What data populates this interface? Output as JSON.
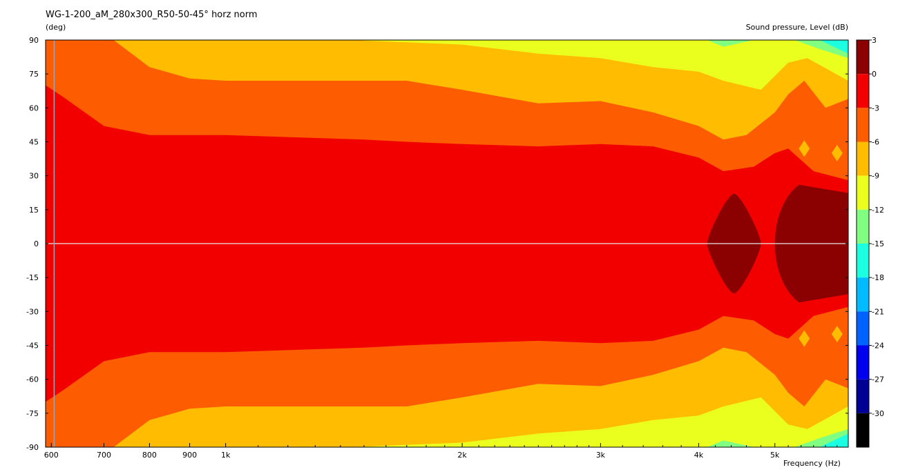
{
  "chart_data": {
    "type": "heatmap",
    "title": "WG-1-200_aM_280x300_R50-50-45° horz norm",
    "ylabel_unit": "(deg)",
    "colorbar_label": "Sound pressure, Level  (dB)",
    "xlabel": "Frequency  (Hz)",
    "x_scale": "log",
    "xlim": [
      590,
      6200
    ],
    "ylim": [
      -90,
      90
    ],
    "x_ticks": [
      {
        "value": 600,
        "label": "600"
      },
      {
        "value": 700,
        "label": "700"
      },
      {
        "value": 800,
        "label": "800"
      },
      {
        "value": 900,
        "label": "900"
      },
      {
        "value": 1000,
        "label": "1k"
      },
      {
        "value": 2000,
        "label": "2k"
      },
      {
        "value": 3000,
        "label": "3k"
      },
      {
        "value": 4000,
        "label": "4k"
      },
      {
        "value": 5000,
        "label": "5k"
      }
    ],
    "x_minor_ticks": [
      1100,
      1200,
      1300,
      1400,
      1500,
      1600,
      1700,
      1800,
      1900,
      2100,
      2200,
      2300,
      2400,
      2500,
      2600,
      2700,
      2800,
      2900,
      3200,
      3400,
      3600,
      3800,
      4200,
      4400,
      4600,
      4800,
      5200,
      5400,
      5600,
      5800,
      6000
    ],
    "y_ticks": [
      90,
      75,
      60,
      45,
      30,
      15,
      0,
      -15,
      -30,
      -45,
      -60,
      -75,
      -90
    ],
    "colorbar": {
      "ticks": [
        3,
        0,
        -3,
        -6,
        -9,
        -12,
        -15,
        -18,
        -21,
        -24,
        -27,
        -30
      ],
      "bands": [
        {
          "from": 0,
          "to": 3,
          "color": "#8b0000"
        },
        {
          "from": -3,
          "to": 0,
          "color": "#f20000"
        },
        {
          "from": -6,
          "to": -3,
          "color": "#fd5d00"
        },
        {
          "from": -9,
          "to": -6,
          "color": "#ffbc00"
        },
        {
          "from": -12,
          "to": -9,
          "color": "#eaff1e"
        },
        {
          "from": -15,
          "to": -12,
          "color": "#80ff80"
        },
        {
          "from": -18,
          "to": -15,
          "color": "#1cffe0"
        },
        {
          "from": -21,
          "to": -18,
          "color": "#00bbff"
        },
        {
          "from": -24,
          "to": -21,
          "color": "#0062ff"
        },
        {
          "from": -27,
          "to": -24,
          "color": "#0000ee"
        },
        {
          "from": -30,
          "to": -27,
          "color": "#000094"
        },
        {
          "from": -33,
          "to": -30,
          "color": "#000000"
        }
      ]
    },
    "contours": [
      {
        "level": "-3 dB",
        "color": "#fd5d00",
        "points": [
          [
            590,
            70
          ],
          [
            620,
            65
          ],
          [
            700,
            52
          ],
          [
            800,
            48
          ],
          [
            1000,
            48
          ],
          [
            1500,
            46
          ],
          [
            1700,
            45
          ],
          [
            2000,
            44
          ],
          [
            2500,
            43
          ],
          [
            3000,
            44
          ],
          [
            3500,
            43
          ],
          [
            4000,
            38
          ],
          [
            4300,
            32
          ],
          [
            4700,
            34
          ],
          [
            5000,
            40
          ],
          [
            5200,
            42
          ],
          [
            5600,
            32
          ],
          [
            6200,
            28
          ]
        ]
      },
      {
        "level": "-6 dB",
        "color": "#ffbc00",
        "points": [
          [
            720,
            90
          ],
          [
            800,
            78
          ],
          [
            900,
            73
          ],
          [
            1000,
            72
          ],
          [
            1500,
            72
          ],
          [
            1700,
            72
          ],
          [
            2000,
            68
          ],
          [
            2500,
            62
          ],
          [
            3000,
            63
          ],
          [
            3500,
            58
          ],
          [
            4000,
            52
          ],
          [
            4300,
            46
          ],
          [
            4600,
            48
          ],
          [
            5000,
            58
          ],
          [
            5200,
            66
          ],
          [
            5450,
            72
          ],
          [
            5800,
            60
          ],
          [
            6200,
            64
          ]
        ]
      },
      {
        "level": "-9 dB",
        "color": "#eaff1e",
        "points": [
          [
            1450,
            90
          ],
          [
            2000,
            88
          ],
          [
            2500,
            84
          ],
          [
            3000,
            82
          ],
          [
            3500,
            78
          ],
          [
            4000,
            76
          ],
          [
            4300,
            72
          ],
          [
            4800,
            68
          ],
          [
            5200,
            80
          ],
          [
            5500,
            82
          ],
          [
            6200,
            72
          ]
        ]
      },
      {
        "level": "-12 dB",
        "color": "#80ff80",
        "points": [
          [
            4100,
            90
          ],
          [
            4300,
            87
          ],
          [
            4700,
            90
          ],
          [
            5300,
            90
          ],
          [
            5700,
            86
          ],
          [
            6200,
            82
          ]
        ]
      },
      {
        "level": "-15 dB",
        "color": "#1cffe0",
        "points": [
          [
            5700,
            90
          ],
          [
            6200,
            84
          ]
        ]
      }
    ],
    "peaks": [
      {
        "level": "> 0 dB",
        "color": "#8b0000",
        "x_range": [
          4100,
          4800
        ],
        "y_max": 22
      },
      {
        "level": "> 0 dB",
        "color": "#8b0000",
        "x_range": [
          5000,
          6200
        ],
        "y_max": 26
      }
    ],
    "islands": [
      {
        "level": "-6 dB",
        "color": "#ffbc00",
        "x": 5450,
        "y": 42
      },
      {
        "level": "-6 dB",
        "color": "#ffbc00",
        "x": 6000,
        "y": 40
      }
    ],
    "reference_x": 605,
    "reference_y": 0
  }
}
